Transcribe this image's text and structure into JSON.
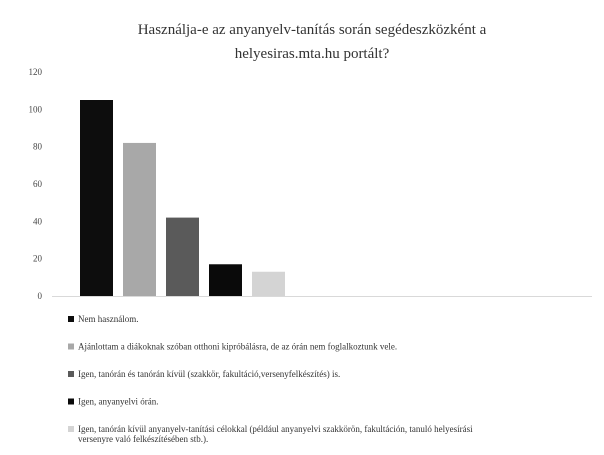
{
  "chart_data": {
    "type": "bar",
    "title_lines": [
      "Használja-e  az anyanyelv-tanítás  során segédeszközként a",
      "helyesiras.mta.hu  portált?"
    ],
    "xlabel": "",
    "ylabel": "",
    "ylim": [
      0,
      120
    ],
    "yticks": [
      0,
      20,
      40,
      60,
      80,
      100,
      120
    ],
    "grid": false,
    "legend_position": "bottom",
    "series": [
      {
        "name": "Nem használom.",
        "value": 105,
        "color": "#0d0d0d",
        "legend_lines": [
          "Nem használom."
        ]
      },
      {
        "name": "Ajánlottam a diákoknak szóban otthoni kipróbálásra, de az órán nem foglalkoztunk vele.",
        "value": 82,
        "color": "#a8a8a8",
        "legend_lines": [
          "Ajánlottam a diákoknak szóban otthoni kipróbálásra, de az órán nem foglalkoztunk vele."
        ]
      },
      {
        "name": "Igen, tanórán és tanórán kívül (szakkör, fakultáció,versenyfelkészítés) is.",
        "value": 42,
        "color": "#5a5a5a",
        "legend_lines": [
          "Igen, tanórán és tanórán kívül (szakkör, fakultáció,versenyfelkészítés) is."
        ]
      },
      {
        "name": "Igen, anyanyelvi órán.",
        "value": 17,
        "color": "#0a0a0a",
        "legend_lines": [
          "Igen, anyanyelvi órán."
        ]
      },
      {
        "name": "Igen, tanórán kívül anyanyelv-tanítási célokkal (például anyanyelvi szakkörön, fakultáción, tanuló helyesírási versenyre való felkészítésében stb.).",
        "value": 13,
        "color": "#d4d4d4",
        "legend_lines": [
          "Igen, tanórán kívül anyanyelv-tanítási célokkal (például anyanyelvi szakkörön, fakultáción, tanuló helyesírási",
          "versenyre való felkészítésében stb.)."
        ]
      }
    ]
  }
}
